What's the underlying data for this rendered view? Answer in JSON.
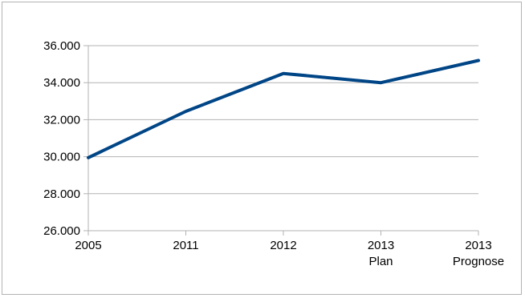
{
  "chart_data": {
    "type": "line",
    "categories": [
      [
        "2005"
      ],
      [
        "2011"
      ],
      [
        "2012"
      ],
      [
        "2013",
        "Plan"
      ],
      [
        "2013",
        "Prognose"
      ]
    ],
    "series": [
      {
        "values": [
          29950,
          32450,
          34500,
          34000,
          35200
        ],
        "color": "#004586"
      }
    ],
    "y_ticks": [
      "26.000",
      "28.000",
      "30.000",
      "32.000",
      "34.000",
      "36.000"
    ],
    "ylim": [
      26000,
      36000
    ],
    "grid": "horizontal",
    "legend": "none"
  }
}
